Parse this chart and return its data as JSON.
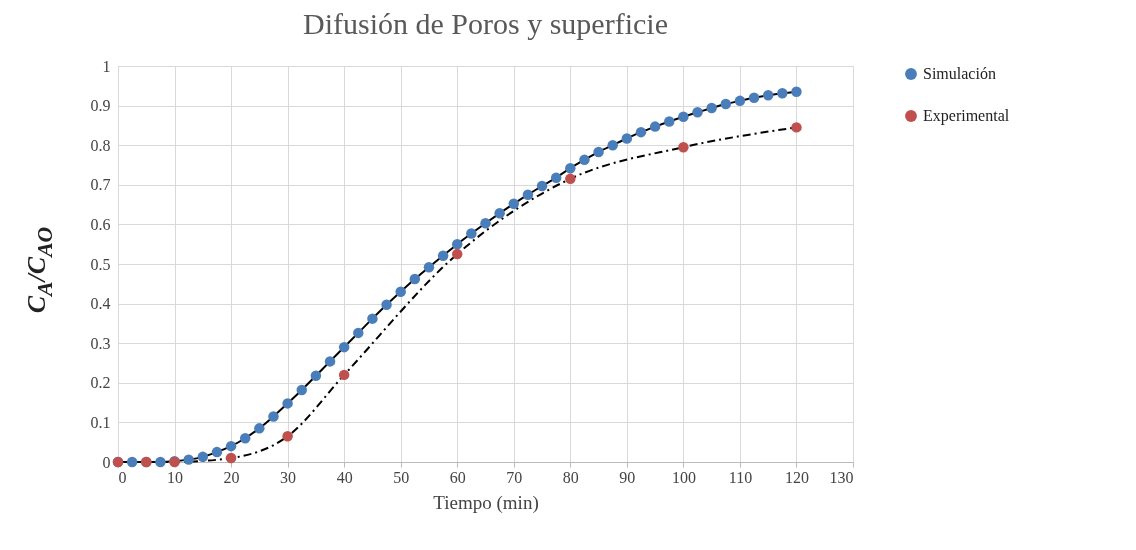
{
  "chart_data": {
    "type": "line",
    "title": "Difusión de Poros y superficie",
    "xlabel": "Tiempo (min)",
    "ylabel": "C$_{A}$/C$_{AO}$",
    "xlim": [
      0,
      130
    ],
    "xticks": [
      0,
      10,
      20,
      30,
      40,
      50,
      60,
      70,
      80,
      90,
      100,
      110,
      120,
      130
    ],
    "ylim": [
      0,
      1
    ],
    "yticks": [
      0,
      0.1,
      0.2,
      0.3,
      0.4,
      0.5,
      0.6,
      0.7,
      0.8,
      0.9,
      1
    ],
    "grid": true,
    "legend": "right",
    "marker": "circle",
    "series": [
      {
        "name": "Simulación",
        "color": "#4a7ebb",
        "line_style": "solid",
        "x": [
          0,
          2.5,
          5,
          7.5,
          10,
          12.5,
          15,
          17.5,
          20,
          22.5,
          25,
          27.5,
          30,
          32.5,
          35,
          37.5,
          40,
          42.5,
          45,
          47.5,
          50,
          52.5,
          55,
          57.5,
          60,
          62.5,
          65,
          67.5,
          70,
          72.5,
          75,
          77.5,
          80,
          82.5,
          85,
          87.5,
          90,
          92.5,
          95,
          97.5,
          100,
          102.5,
          105,
          107.5,
          110,
          112.5,
          115,
          117.5,
          120
        ],
        "values": [
          0,
          0,
          0,
          0,
          0.002,
          0.006,
          0.013,
          0.025,
          0.04,
          0.06,
          0.085,
          0.115,
          0.148,
          0.182,
          0.218,
          0.254,
          0.29,
          0.326,
          0.362,
          0.397,
          0.43,
          0.462,
          0.492,
          0.521,
          0.55,
          0.577,
          0.603,
          0.628,
          0.652,
          0.675,
          0.697,
          0.718,
          0.742,
          0.763,
          0.783,
          0.8,
          0.817,
          0.833,
          0.847,
          0.86,
          0.872,
          0.883,
          0.894,
          0.904,
          0.912,
          0.92,
          0.926,
          0.931,
          0.935
        ]
      },
      {
        "name": "Experimental",
        "color": "#c0504d",
        "line_style": "dashed",
        "x": [
          0,
          5,
          10,
          20,
          30,
          40,
          60,
          80,
          100,
          120
        ],
        "values": [
          0,
          0,
          0,
          0.01,
          0.065,
          0.22,
          0.525,
          0.715,
          0.795,
          0.845
        ]
      }
    ]
  }
}
